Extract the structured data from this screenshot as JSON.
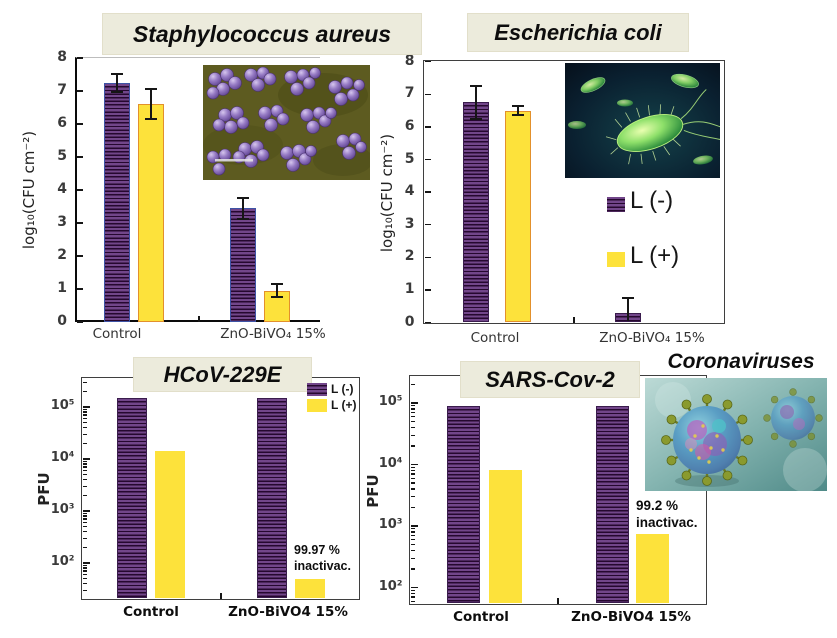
{
  "chart_data": [
    {
      "id": "staph",
      "type": "bar",
      "title": "Staphylococcus aureus",
      "ylabel": "log₁₀(CFU cm⁻²)",
      "scale": "linear",
      "ylim": [
        0,
        8
      ],
      "yticks": [
        "0",
        "1",
        "2",
        "3",
        "4",
        "5",
        "6",
        "7",
        "8"
      ],
      "categories": [
        "Control",
        "ZnO-BiVO₄ 15%"
      ],
      "series": [
        {
          "name": "L (-)",
          "values": [
            7.25,
            3.45
          ],
          "errors": [
            0.28,
            0.32
          ]
        },
        {
          "name": "L (+)",
          "values": [
            6.6,
            0.95
          ],
          "errors": [
            0.45,
            0.2
          ]
        }
      ],
      "legend_position": "none",
      "grid": false
    },
    {
      "id": "ecoli",
      "type": "bar",
      "title": "Escherichia coli",
      "ylabel": "log₁₀(CFU cm⁻²)",
      "scale": "linear",
      "ylim": [
        0,
        8
      ],
      "yticks": [
        "0",
        "1",
        "2",
        "3",
        "4",
        "5",
        "6",
        "7",
        "8"
      ],
      "categories": [
        "Control",
        "ZnO-BiVO₄ 15%"
      ],
      "series": [
        {
          "name": "L (-)",
          "values": [
            6.75,
            0.3
          ],
          "errors": [
            0.5,
            0.45
          ]
        },
        {
          "name": "L (+)",
          "values": [
            6.5,
            0
          ],
          "errors": [
            0.15,
            0
          ]
        }
      ],
      "legend_position": "inside-right",
      "grid": false
    },
    {
      "id": "hcov",
      "type": "bar",
      "title": "HCoV-229E",
      "ylabel": "PFU",
      "scale": "log",
      "ylim": [
        20,
        300000
      ],
      "yticks": [
        "10⁵",
        "10⁴",
        "10³",
        "10²"
      ],
      "categories": [
        "Control",
        "ZnO-BiVO4 15%"
      ],
      "series": [
        {
          "name": "L (-)",
          "values": [
            150000,
            150000
          ]
        },
        {
          "name": "L (+)",
          "values": [
            14000,
            50
          ]
        }
      ],
      "annotation": "99.97 %\ninactivac.",
      "legend_position": "inside-top-right",
      "grid": false
    },
    {
      "id": "sars",
      "type": "bar",
      "title": "SARS-Cov-2",
      "ylabel": "PFU",
      "scale": "log",
      "ylim": [
        50,
        300000
      ],
      "yticks": [
        "10⁵",
        "10⁴",
        "10³",
        "10²"
      ],
      "categories": [
        "Control",
        "ZnO-BiVO4 15%"
      ],
      "series": [
        {
          "name": "L (-)",
          "values": [
            90000,
            90000
          ]
        },
        {
          "name": "L (+)",
          "values": [
            8000,
            750
          ]
        }
      ],
      "annotation": "99.2 %\ninactivac.",
      "legend_position": "none",
      "grid": false
    }
  ],
  "legend": {
    "l_minus": "L (-)",
    "l_plus": "L (+)"
  },
  "labels": {
    "coronaviruses": "Coronaviruses"
  },
  "colors": {
    "bar_purple": "#72468a",
    "bar_purple_stripe": "#26082f",
    "bar_yellow": "#fde23b",
    "yellow_border": "#e2902c",
    "title_box_bg": "#ecebdc",
    "error_bar": "#161616"
  }
}
